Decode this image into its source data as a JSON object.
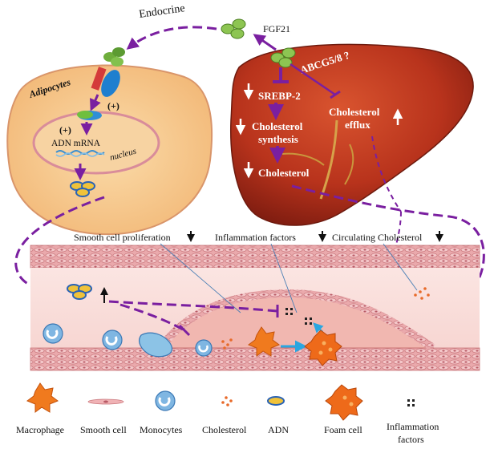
{
  "labels": {
    "endocrine": "Endocrine",
    "fgf21": "FGF21",
    "adipocytes": "Adipocytes",
    "plus_receptor": "(+)",
    "plus_nucleus": "(+)",
    "adn_mrna": "ADN  mRNA",
    "nucleus": "nucleus",
    "abcg58": "ABCG5/8 ?",
    "srebp2": "SREBP-2",
    "cholesterol_synthesis_1": "Cholesterol",
    "cholesterol_synthesis_2": "synthesis",
    "cholesterol_efflux_1": "Cholesterol",
    "cholesterol_efflux_2": "efflux",
    "cholesterol_liver": "Cholesterol",
    "smooth_cell_proliferation": "Smooth cell  proliferation",
    "inflammation_factors": "Inflammation factors",
    "circulating_cholesterol": "Circulating Cholesterol"
  },
  "legend": [
    {
      "label": "Macrophage",
      "icon": "macrophage-icon"
    },
    {
      "label": "Smooth cell",
      "icon": "smooth-cell-icon"
    },
    {
      "label": "Monocytes",
      "icon": "monocyte-icon"
    },
    {
      "label": "Cholesterol",
      "icon": "cholesterol-icon"
    },
    {
      "label": "ADN",
      "icon": "adn-icon"
    },
    {
      "label": "Foam cell",
      "icon": "foam-cell-icon"
    },
    {
      "label": "Inflammation",
      "label2": "factors",
      "icon": "inflammation-factors-icon"
    }
  ],
  "colors": {
    "purple": "#7a1fa0",
    "liver": "#b8331c",
    "adipocyte": "#f6c98e",
    "vessel": "#e8a0a0",
    "arrow_blue": "#2aa6e0"
  }
}
